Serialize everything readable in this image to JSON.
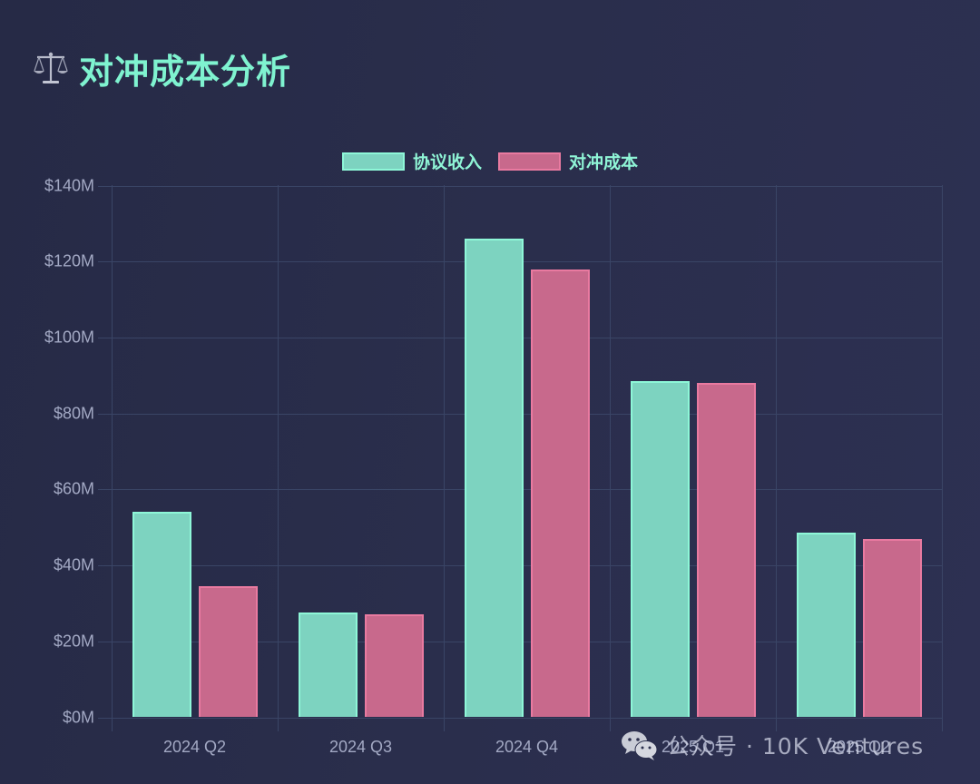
{
  "header": {
    "icon": "balance-scale-icon",
    "title": "对冲成本分析"
  },
  "legend": [
    {
      "label": "协议收入",
      "fill": "#7dd3c0",
      "border": "#8ef7d8"
    },
    {
      "label": "对冲成本",
      "fill": "#c8698c",
      "border": "#e97aa0"
    }
  ],
  "watermark": {
    "icon": "wechat-icon",
    "text": "公众号 · 10K Ventures"
  },
  "chart_data": {
    "type": "bar",
    "title": "对冲成本分析",
    "categories": [
      "2024 Q2",
      "2024 Q3",
      "2024 Q4",
      "2025 Q1",
      "2025 Q2"
    ],
    "series": [
      {
        "name": "协议收入",
        "values": [
          54,
          27.5,
          126,
          88.5,
          48.5
        ],
        "color": "#7dd3c0"
      },
      {
        "name": "对冲成本",
        "values": [
          34.5,
          27,
          118,
          88,
          47
        ],
        "color": "#c8698c"
      }
    ],
    "unit": "$M",
    "xlabel": "",
    "ylabel": "",
    "ylim": [
      0,
      140
    ],
    "yticks": [
      "$0M",
      "$20M",
      "$40M",
      "$60M",
      "$80M",
      "$100M",
      "$120M",
      "$140M"
    ],
    "grid": true,
    "legend_position": "top"
  }
}
